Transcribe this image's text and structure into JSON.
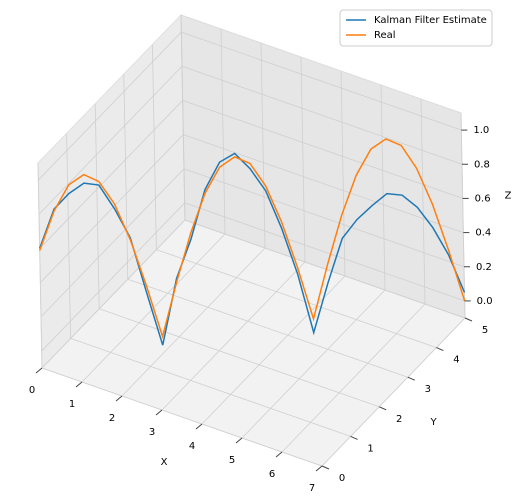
{
  "chart_data": {
    "type": "line3d",
    "x": [
      0,
      0.25,
      0.5,
      0.75,
      1,
      1.25,
      1.5,
      1.75,
      2,
      2.25,
      2.5,
      2.75,
      3,
      3.25,
      3.5,
      3.75,
      4,
      4.25,
      4.5,
      4.75,
      5,
      5.25,
      5.5,
      5.75,
      6,
      6.25,
      6.5,
      6.75,
      7
    ],
    "y": [
      0,
      0.18,
      0.36,
      0.54,
      0.71,
      0.89,
      1.07,
      1.25,
      1.43,
      1.61,
      1.79,
      1.96,
      2.14,
      2.32,
      2.5,
      2.68,
      2.86,
      3.04,
      3.21,
      3.39,
      3.57,
      3.75,
      3.93,
      4.11,
      4.29,
      4.46,
      4.64,
      4.82,
      5
    ],
    "series": [
      {
        "name": "Kalman Filter Estimate",
        "color": "#1f77b4",
        "values": [
          0.6,
          0.82,
          0.9,
          0.95,
          0.93,
          0.78,
          0.6,
          0.27,
          -0.05,
          0.33,
          0.55,
          0.83,
          0.98,
          1.02,
          0.92,
          0.78,
          0.55,
          0.27,
          -0.08,
          0.2,
          0.45,
          0.55,
          0.62,
          0.68,
          0.66,
          0.58,
          0.45,
          0.28,
          0.05
        ]
      },
      {
        "name": "Real",
        "color": "#ff7f0e",
        "values": [
          0.588,
          0.809,
          0.951,
          1,
          0.951,
          0.809,
          0.588,
          0.309,
          0,
          0.309,
          0.588,
          0.809,
          0.951,
          1,
          0.951,
          0.809,
          0.588,
          0.309,
          0,
          0.309,
          0.588,
          0.809,
          0.951,
          1,
          0.951,
          0.809,
          0.588,
          0.309,
          0
        ]
      }
    ],
    "xlabel": "X",
    "ylabel": "Y",
    "zlabel": "Z",
    "xlim": [
      0,
      7
    ],
    "ylim": [
      0,
      5
    ],
    "zlim": [
      -0.1,
      1.1
    ],
    "xticks": [
      0,
      1,
      2,
      3,
      4,
      5,
      6,
      7
    ],
    "yticks": [
      0,
      1,
      2,
      3,
      4,
      5
    ],
    "zticks": [
      {
        "value": 0,
        "label": "0.0"
      },
      0.2,
      0.4,
      0.6,
      0.8,
      {
        "value": 1,
        "label": "1.0"
      }
    ],
    "grid": true,
    "legend": "upper right"
  }
}
